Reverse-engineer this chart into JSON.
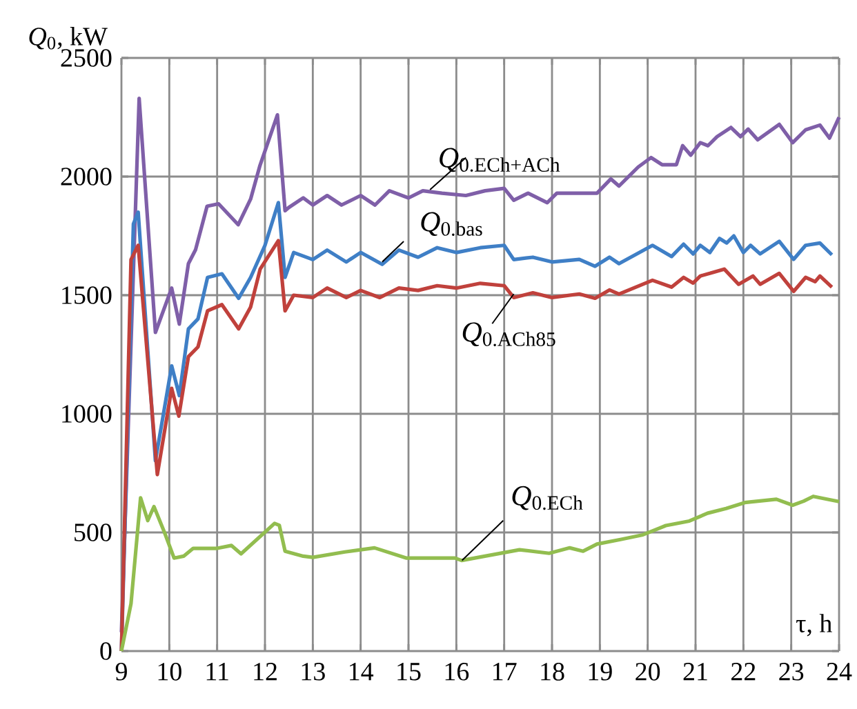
{
  "chart_data": {
    "type": "line",
    "ylabel": "*Q*$_{0}$, kW",
    "xlabel": "τ, h",
    "xlim": [
      9,
      24
    ],
    "ylim": [
      0,
      2500
    ],
    "xticks": [
      9,
      10,
      11,
      12,
      13,
      14,
      15,
      16,
      17,
      18,
      19,
      20,
      21,
      22,
      23,
      24
    ],
    "yticks": [
      0,
      500,
      1000,
      1500,
      2000,
      2500
    ],
    "grid": true,
    "series": [
      {
        "name": "*Q*$_{0.ECh+ACh}$",
        "color": "#7f5fa8",
        "x": [
          9,
          9.37,
          9.71,
          10.05,
          10.21,
          10.4,
          10.55,
          10.79,
          11.03,
          11.44,
          11.7,
          11.89,
          12.26,
          12.42,
          12.5,
          12.8,
          13.0,
          13.3,
          13.6,
          14.0,
          14.3,
          14.6,
          15.0,
          15.3,
          15.7,
          16.2,
          16.6,
          17.0,
          17.2,
          17.5,
          17.9,
          18.1,
          18.57,
          18.94,
          19.23,
          19.4,
          19.8,
          20.07,
          20.3,
          20.6,
          20.73,
          20.9,
          21.1,
          21.26,
          21.45,
          21.74,
          21.94,
          22.1,
          22.3,
          22.75,
          23.03,
          23.3,
          23.6,
          23.8,
          24
        ],
        "values": [
          80,
          2330,
          1343,
          1530,
          1378,
          1633,
          1692,
          1875,
          1885,
          1797,
          1905,
          2043,
          2260,
          1856,
          1870,
          1910,
          1880,
          1920,
          1880,
          1920,
          1880,
          1940,
          1910,
          1940,
          1930,
          1920,
          1940,
          1950,
          1900,
          1930,
          1890,
          1930,
          1930,
          1930,
          1990,
          1960,
          2040,
          2080,
          2050,
          2050,
          2130,
          2090,
          2143,
          2130,
          2168,
          2207,
          2168,
          2200,
          2155,
          2220,
          2143,
          2197,
          2217,
          2162,
          2250
        ]
      },
      {
        "name": "*Q*$_{0.bas}$",
        "color": "#3f7fc6",
        "x": [
          9,
          9.25,
          9.35,
          9.71,
          10.05,
          10.21,
          10.4,
          10.6,
          10.8,
          11.1,
          11.45,
          11.7,
          12.0,
          12.28,
          12.42,
          12.6,
          13.0,
          13.3,
          13.7,
          14.0,
          14.45,
          14.8,
          15.2,
          15.6,
          16.0,
          16.5,
          17.0,
          17.2,
          17.6,
          18.0,
          18.57,
          18.9,
          19.2,
          19.4,
          20.1,
          20.5,
          20.75,
          20.95,
          21.1,
          21.3,
          21.5,
          21.65,
          21.8,
          22.0,
          22.15,
          22.35,
          22.75,
          23.05,
          23.3,
          23.6,
          23.85
        ],
        "values": [
          0,
          1800,
          1850,
          802,
          1202,
          1077,
          1358,
          1400,
          1575,
          1590,
          1487,
          1575,
          1710,
          1890,
          1575,
          1680,
          1650,
          1690,
          1640,
          1680,
          1630,
          1690,
          1660,
          1700,
          1680,
          1700,
          1710,
          1650,
          1660,
          1640,
          1651,
          1622,
          1660,
          1633,
          1710,
          1663,
          1715,
          1674,
          1710,
          1680,
          1739,
          1720,
          1750,
          1680,
          1710,
          1674,
          1727,
          1651,
          1710,
          1720,
          1670
        ]
      },
      {
        "name": "*Q*$_{0.ACh85}$",
        "color": "#c0413c",
        "x": [
          9,
          9.2,
          9.35,
          9.75,
          10.05,
          10.2,
          10.4,
          10.6,
          10.8,
          11.1,
          11.45,
          11.7,
          11.9,
          12.28,
          12.42,
          12.6,
          13.0,
          13.3,
          13.7,
          14.0,
          14.4,
          14.8,
          15.2,
          15.6,
          16.0,
          16.5,
          17.0,
          17.2,
          17.6,
          18.0,
          18.57,
          18.9,
          19.2,
          19.4,
          20.1,
          20.5,
          20.75,
          20.95,
          21.1,
          21.3,
          21.6,
          21.9,
          22.2,
          22.35,
          22.6,
          22.75,
          23.05,
          23.3,
          23.5,
          23.6,
          23.85
        ],
        "values": [
          0,
          1650,
          1710,
          744,
          1107,
          990,
          1241,
          1282,
          1434,
          1460,
          1358,
          1450,
          1610,
          1730,
          1434,
          1500,
          1490,
          1530,
          1490,
          1520,
          1490,
          1530,
          1520,
          1540,
          1530,
          1550,
          1540,
          1490,
          1510,
          1490,
          1505,
          1487,
          1522,
          1505,
          1563,
          1534,
          1575,
          1551,
          1581,
          1592,
          1610,
          1546,
          1581,
          1546,
          1575,
          1592,
          1516,
          1575,
          1557,
          1581,
          1534
        ]
      },
      {
        "name": "*Q*$_{0.ECh}$",
        "color": "#92bd4f",
        "x": [
          9,
          9.2,
          9.4,
          9.55,
          9.68,
          9.9,
          10.1,
          10.3,
          10.5,
          11.0,
          11.3,
          11.5,
          12.2,
          12.3,
          12.42,
          12.8,
          13.0,
          13.67,
          14.29,
          14.96,
          15.97,
          16.11,
          17.32,
          17.94,
          18.37,
          18.65,
          18.94,
          19.43,
          19.9,
          20.38,
          20.87,
          21.25,
          21.64,
          22.03,
          22.69,
          23.03,
          23.26,
          23.46,
          23.8,
          24
        ],
        "values": [
          0,
          200,
          646,
          550,
          609,
          500,
          392,
          400,
          433,
          433,
          445,
          410,
          538,
          530,
          421,
          400,
          395,
          418,
          435,
          392,
          392,
          382,
          427,
          412,
          435,
          421,
          451,
          470,
          490,
          529,
          548,
          581,
          601,
          626,
          640,
          615,
          632,
          652,
          638,
          630
        ]
      }
    ]
  }
}
